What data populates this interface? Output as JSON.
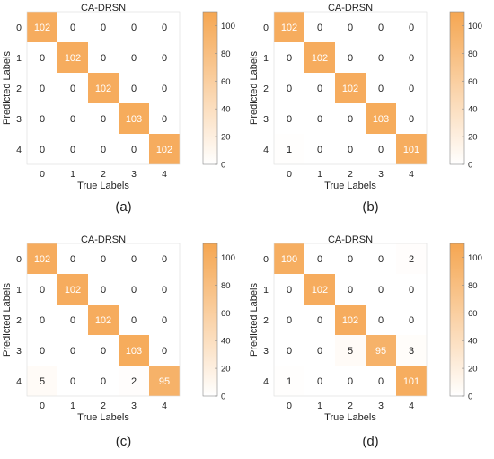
{
  "colors": {
    "low": "#ffffff",
    "high": "#f5a651",
    "text_dark": "#222222",
    "text_light": "#ffffff",
    "frame": "#888888"
  },
  "colorbar": {
    "min": 0,
    "max": 110,
    "ticks": [
      "0",
      "20",
      "40",
      "60",
      "80",
      "100"
    ]
  },
  "chart_data": [
    {
      "type": "heatmap",
      "title": "CA-DRSN",
      "xlabel": "True Labels",
      "ylabel": "Predicted Labels",
      "caption": "(a)",
      "x_ticks": [
        "0",
        "1",
        "2",
        "3",
        "4"
      ],
      "y_ticks": [
        "0",
        "1",
        "2",
        "3",
        "4"
      ],
      "values": [
        [
          102,
          0,
          0,
          0,
          0
        ],
        [
          0,
          102,
          0,
          0,
          0
        ],
        [
          0,
          0,
          102,
          0,
          0
        ],
        [
          0,
          0,
          0,
          103,
          0
        ],
        [
          0,
          0,
          0,
          0,
          102
        ]
      ]
    },
    {
      "type": "heatmap",
      "title": "CA-DRSN",
      "xlabel": "True Labels",
      "ylabel": "Predicted Labels",
      "caption": "(b)",
      "x_ticks": [
        "0",
        "1",
        "2",
        "3",
        "4"
      ],
      "y_ticks": [
        "0",
        "1",
        "2",
        "3",
        "4"
      ],
      "values": [
        [
          102,
          0,
          0,
          0,
          0
        ],
        [
          0,
          102,
          0,
          0,
          0
        ],
        [
          0,
          0,
          102,
          0,
          0
        ],
        [
          0,
          0,
          0,
          103,
          0
        ],
        [
          1,
          0,
          0,
          0,
          101
        ]
      ]
    },
    {
      "type": "heatmap",
      "title": "CA-DRSN",
      "xlabel": "True Labels",
      "ylabel": "Predicted Labels",
      "caption": "(c)",
      "x_ticks": [
        "0",
        "1",
        "2",
        "3",
        "4"
      ],
      "y_ticks": [
        "0",
        "1",
        "2",
        "3",
        "4"
      ],
      "values": [
        [
          102,
          0,
          0,
          0,
          0
        ],
        [
          0,
          102,
          0,
          0,
          0
        ],
        [
          0,
          0,
          102,
          0,
          0
        ],
        [
          0,
          0,
          0,
          103,
          0
        ],
        [
          5,
          0,
          0,
          2,
          95
        ]
      ]
    },
    {
      "type": "heatmap",
      "title": "CA-DRSN",
      "xlabel": "True Labels",
      "ylabel": "Predicted Labels",
      "caption": "(d)",
      "x_ticks": [
        "0",
        "1",
        "2",
        "3",
        "4"
      ],
      "y_ticks": [
        "0",
        "1",
        "2",
        "3",
        "4"
      ],
      "values": [
        [
          100,
          0,
          0,
          0,
          2
        ],
        [
          0,
          102,
          0,
          0,
          0
        ],
        [
          0,
          0,
          102,
          0,
          0
        ],
        [
          0,
          0,
          5,
          95,
          3
        ],
        [
          1,
          0,
          0,
          0,
          101
        ]
      ]
    }
  ]
}
